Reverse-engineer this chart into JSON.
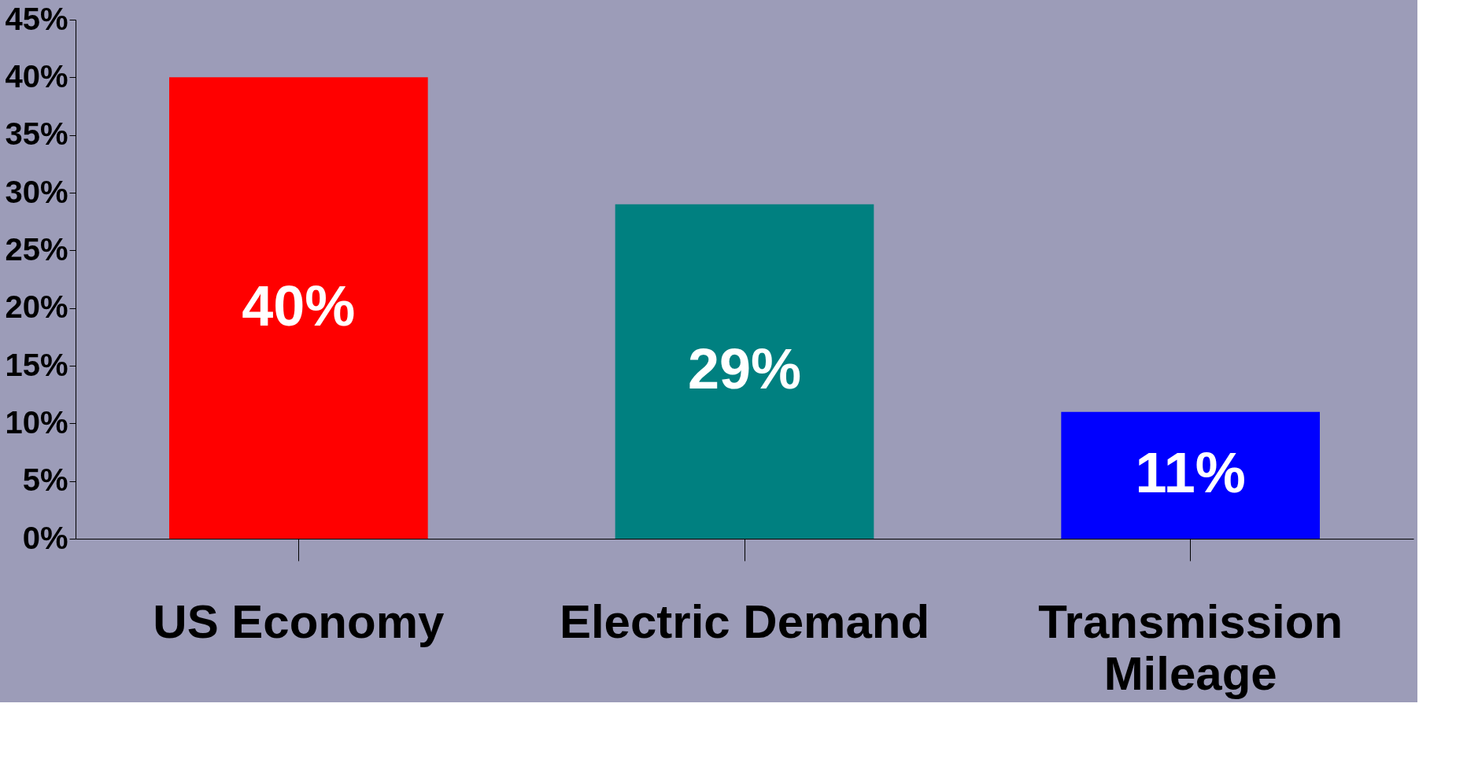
{
  "chart_data": {
    "type": "bar",
    "categories": [
      "US Economy",
      "Electric Demand",
      "Transmission Mileage"
    ],
    "values": [
      40,
      29,
      11
    ],
    "colors": [
      "#ff0000",
      "#008080",
      "#0000ff"
    ],
    "value_labels": [
      "40%",
      "29%",
      "11%"
    ],
    "ylim": [
      0,
      45
    ],
    "yticks": [
      {
        "value": 0,
        "label": "0%"
      },
      {
        "value": 5,
        "label": "5%"
      },
      {
        "value": 10,
        "label": "10%"
      },
      {
        "value": 15,
        "label": "15%"
      },
      {
        "value": 20,
        "label": "20%"
      },
      {
        "value": 25,
        "label": "25%"
      },
      {
        "value": 30,
        "label": "30%"
      },
      {
        "value": 35,
        "label": "35%"
      },
      {
        "value": 40,
        "label": "40%"
      },
      {
        "value": 45,
        "label": "45%"
      }
    ],
    "grid": false
  }
}
